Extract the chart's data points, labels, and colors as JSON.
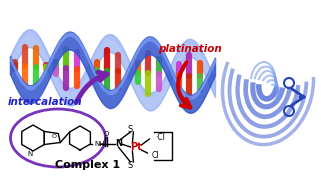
{
  "background_color": "#ffffff",
  "label_intercalation": "intercalation",
  "label_platination": "platination",
  "label_complex": "Complex 1",
  "intercalation_color": "#2222cc",
  "platination_color": "#cc0000",
  "complex_label_color": "#000000",
  "dna_blue": "#3355cc",
  "dna_light": "#7799ee",
  "scissors_blue": "#2244bb",
  "ellipse_color": "#7733bb",
  "pt_color": "#cc0000",
  "figsize": [
    3.21,
    1.89
  ],
  "dpi": 100,
  "helix_colors": [
    "#cc3333",
    "#dd4422",
    "#ee6600",
    "#cc2222",
    "#33aa33",
    "#55bb00",
    "#cc33cc",
    "#aa22aa",
    "#ee4400",
    "#cc0000"
  ],
  "helix_colors2": [
    "#dd2200",
    "#ff6600",
    "#33cc33",
    "#99cc00",
    "#cc55cc",
    "#9922aa",
    "#ff4400",
    "#cc2200",
    "#44bb44",
    "#22aa22"
  ]
}
